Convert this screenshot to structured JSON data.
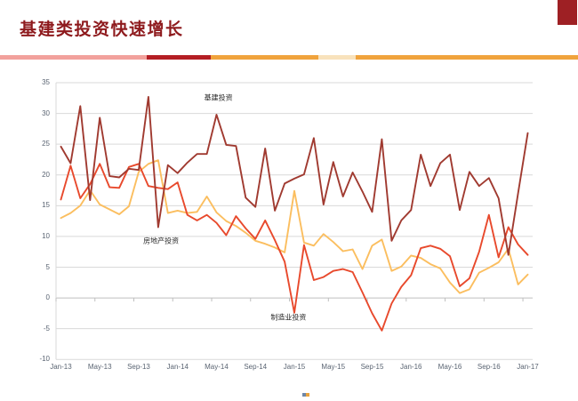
{
  "header": {
    "title": "基建类投资快速增长",
    "title_color": "#8E1A1D",
    "corner_color": "#9E2024",
    "band": [
      {
        "color": "#F2A19C",
        "width": "25.4%"
      },
      {
        "color": "#B41E24",
        "width": "11.1%"
      },
      {
        "color": "#F0A33C",
        "width": "18.6%"
      },
      {
        "color": "#F8E2BC",
        "width": "6.4%"
      },
      {
        "color": "#F0A33C",
        "width": "38.5%"
      }
    ]
  },
  "chart_data": {
    "type": "line",
    "title": "",
    "xlabel": "",
    "ylabel": "",
    "ylim": [
      -10,
      35
    ],
    "ytick_step": 5,
    "grid": true,
    "legend_position": "none",
    "x_unit": "month",
    "x_range": [
      "Jan-13",
      "Jan-17"
    ],
    "x_tick_labels": [
      "Jan-13",
      "May-13",
      "Sep-13",
      "Jan-14",
      "May-14",
      "Sep-14",
      "Jan-15",
      "May-15",
      "Sep-15",
      "Jan-16",
      "May-16",
      "Sep-16",
      "Jan-17"
    ],
    "series": [
      {
        "name": "基建投资",
        "color": "#A03A30",
        "values": [
          24.6,
          21.9,
          31.2,
          15.9,
          29.3,
          19.8,
          19.6,
          21.0,
          20.8,
          32.7,
          11.5,
          21.6,
          20.3,
          22.0,
          23.4,
          23.4,
          29.8,
          24.9,
          24.7,
          16.3,
          14.8,
          24.3,
          14.2,
          18.6,
          19.4,
          20.1,
          26.0,
          15.2,
          22.1,
          16.5,
          20.4,
          17.3,
          14.0,
          25.8,
          9.3,
          12.6,
          14.3,
          23.3,
          18.2,
          21.9,
          23.3,
          14.3,
          20.5,
          18.2,
          19.5,
          16.2,
          7.0,
          17.0,
          26.8
        ]
      },
      {
        "name": "房地产投资",
        "color": "#FBBE5F",
        "values": [
          13.0,
          13.8,
          15.0,
          17.5,
          15.2,
          14.4,
          13.6,
          14.9,
          20.5,
          21.8,
          22.4,
          13.8,
          14.2,
          13.8,
          14.0,
          16.5,
          13.9,
          12.5,
          11.7,
          10.6,
          9.3,
          8.8,
          8.2,
          7.4,
          17.4,
          9.0,
          8.5,
          10.4,
          9.1,
          7.6,
          7.9,
          4.7,
          8.5,
          9.5,
          4.4,
          5.1,
          6.9,
          6.5,
          5.5,
          4.8,
          2.5,
          0.8,
          1.4,
          4.1,
          4.9,
          5.8,
          8.0,
          2.2,
          3.8
        ]
      },
      {
        "name": "制造业投资",
        "color": "#E8492C",
        "values": [
          16.0,
          21.5,
          16.2,
          18.5,
          21.8,
          18.0,
          17.9,
          21.3,
          21.8,
          18.2,
          17.9,
          17.7,
          18.8,
          13.5,
          12.6,
          13.5,
          12.2,
          10.2,
          13.3,
          11.3,
          9.6,
          12.6,
          9.4,
          5.9,
          -2.4,
          8.6,
          2.9,
          3.4,
          4.4,
          4.7,
          4.2,
          0.9,
          -2.5,
          -5.3,
          -0.9,
          1.8,
          3.7,
          8.1,
          8.5,
          8.0,
          6.8,
          1.9,
          3.2,
          7.5,
          13.5,
          6.6,
          11.5,
          8.7,
          7.0
        ]
      }
    ],
    "annotations": [
      {
        "label": "基建投资",
        "m": 16.2,
        "v": 32.6
      },
      {
        "label": "房地产投资",
        "m": 10.3,
        "v": 9.3
      },
      {
        "label": "制造业投资",
        "m": 23.4,
        "v": -3.2
      }
    ],
    "axis_colors": {
      "gridline": "#D9D9D9",
      "zero_axis": "#BFBFBF",
      "tick_text": "#5A6472"
    }
  },
  "footer_mark_colors": [
    "#6E87A8",
    "#E8A33D"
  ]
}
